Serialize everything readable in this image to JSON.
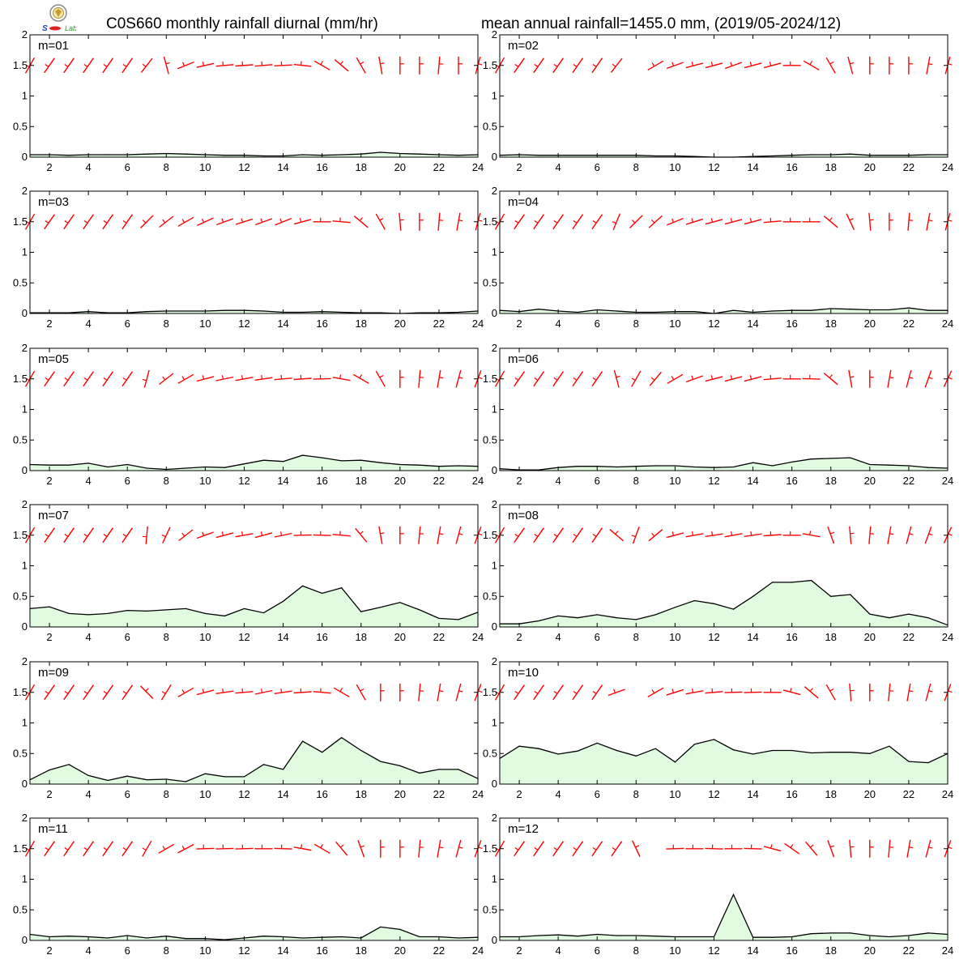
{
  "header": {
    "title_left": "C0S660 monthly rainfall diurnal (mm/hr)",
    "title_right": "mean annual rainfall=1455.0 mm, (2019/05-2024/12)",
    "logo_icon": "weather-lab-logo-icon"
  },
  "colors": {
    "rain_fill": "#e0fbe0",
    "rain_line": "#000000",
    "wind_barb": "#ff0000"
  },
  "chart_data": [
    {
      "type": "area",
      "label": "m=01",
      "x": [
        1,
        2,
        3,
        4,
        5,
        6,
        7,
        8,
        9,
        10,
        11,
        12,
        13,
        14,
        15,
        16,
        17,
        18,
        19,
        20,
        21,
        22,
        23,
        24
      ],
      "xticks": [
        2,
        4,
        6,
        8,
        10,
        12,
        14,
        16,
        18,
        20,
        22,
        24
      ],
      "ylim": [
        0,
        2
      ],
      "yticks": [
        0,
        0.5,
        1,
        1.5,
        2
      ],
      "values": [
        0.04,
        0.04,
        0.03,
        0.04,
        0.04,
        0.04,
        0.05,
        0.06,
        0.05,
        0.04,
        0.03,
        0.03,
        0.02,
        0.02,
        0.04,
        0.03,
        0.04,
        0.05,
        0.08,
        0.06,
        0.05,
        0.04,
        0.03,
        0.04
      ],
      "wind_dir": [
        210,
        215,
        215,
        215,
        215,
        215,
        218,
        345,
        248,
        257,
        265,
        266,
        265,
        267,
        276,
        300,
        310,
        330,
        350,
        0,
        0,
        5,
        0,
        15
      ]
    },
    {
      "type": "area",
      "label": "m=02",
      "x": [
        1,
        2,
        3,
        4,
        5,
        6,
        7,
        8,
        9,
        10,
        11,
        12,
        13,
        14,
        15,
        16,
        17,
        18,
        19,
        20,
        21,
        22,
        23,
        24
      ],
      "xticks": [
        2,
        4,
        6,
        8,
        10,
        12,
        14,
        16,
        18,
        20,
        22,
        24
      ],
      "ylim": [
        0,
        2
      ],
      "yticks": [
        0,
        0.5,
        1,
        1.5,
        2
      ],
      "values": [
        0.03,
        0.04,
        0.03,
        0.03,
        0.03,
        0.03,
        0.03,
        0.03,
        0.02,
        0.02,
        0.01,
        0.0,
        0.0,
        0.01,
        0.02,
        0.03,
        0.04,
        0.04,
        0.05,
        0.03,
        0.03,
        0.03,
        0.04,
        0.04
      ],
      "wind_dir": [
        210,
        215,
        215,
        215,
        215,
        215,
        218,
        null,
        240,
        250,
        255,
        255,
        250,
        255,
        255,
        270,
        300,
        330,
        345,
        0,
        0,
        0,
        10,
        15
      ]
    },
    {
      "type": "area",
      "label": "m=03",
      "x": [
        1,
        2,
        3,
        4,
        5,
        6,
        7,
        8,
        9,
        10,
        11,
        12,
        13,
        14,
        15,
        16,
        17,
        18,
        19,
        20,
        21,
        22,
        23,
        24
      ],
      "xticks": [
        2,
        4,
        6,
        8,
        10,
        12,
        14,
        16,
        18,
        20,
        22,
        24
      ],
      "ylim": [
        0,
        2
      ],
      "yticks": [
        0,
        0.5,
        1,
        1.5,
        2
      ],
      "values": [
        0.01,
        0.01,
        0.01,
        0.03,
        0.01,
        0.01,
        0.03,
        0.04,
        0.04,
        0.04,
        0.05,
        0.05,
        0.04,
        0.02,
        0.02,
        0.03,
        0.02,
        0.01,
        0.01,
        0.0,
        0.01,
        0.01,
        0.02,
        0.04
      ],
      "wind_dir": [
        210,
        215,
        215,
        215,
        215,
        215,
        225,
        232,
        240,
        245,
        250,
        252,
        250,
        248,
        255,
        270,
        275,
        310,
        330,
        355,
        0,
        5,
        10,
        15
      ]
    },
    {
      "type": "area",
      "label": "m=04",
      "x": [
        1,
        2,
        3,
        4,
        5,
        6,
        7,
        8,
        9,
        10,
        11,
        12,
        13,
        14,
        15,
        16,
        17,
        18,
        19,
        20,
        21,
        22,
        23,
        24
      ],
      "xticks": [
        2,
        4,
        6,
        8,
        10,
        12,
        14,
        16,
        18,
        20,
        22,
        24
      ],
      "ylim": [
        0,
        2
      ],
      "yticks": [
        0,
        0.5,
        1,
        1.5,
        2
      ],
      "values": [
        0.05,
        0.03,
        0.07,
        0.04,
        0.02,
        0.06,
        0.04,
        0.02,
        0.02,
        0.03,
        0.03,
        0.0,
        0.05,
        0.02,
        0.04,
        0.05,
        0.05,
        0.08,
        0.07,
        0.06,
        0.06,
        0.09,
        0.05,
        0.05
      ],
      "wind_dir": [
        210,
        215,
        215,
        215,
        215,
        215,
        202,
        225,
        228,
        248,
        252,
        255,
        255,
        255,
        265,
        270,
        270,
        310,
        335,
        355,
        0,
        5,
        10,
        15
      ]
    },
    {
      "type": "area",
      "label": "m=05",
      "x": [
        1,
        2,
        3,
        4,
        5,
        6,
        7,
        8,
        9,
        10,
        11,
        12,
        13,
        14,
        15,
        16,
        17,
        18,
        19,
        20,
        21,
        22,
        23,
        24
      ],
      "xticks": [
        2,
        4,
        6,
        8,
        10,
        12,
        14,
        16,
        18,
        20,
        22,
        24
      ],
      "ylim": [
        0,
        2
      ],
      "yticks": [
        0,
        0.5,
        1,
        1.5,
        2
      ],
      "values": [
        0.1,
        0.09,
        0.09,
        0.12,
        0.06,
        0.1,
        0.04,
        0.02,
        0.04,
        0.06,
        0.05,
        0.11,
        0.17,
        0.15,
        0.25,
        0.21,
        0.16,
        0.17,
        0.13,
        0.1,
        0.09,
        0.07,
        0.08,
        0.07
      ],
      "wind_dir": [
        210,
        215,
        215,
        215,
        215,
        215,
        195,
        232,
        240,
        255,
        258,
        260,
        262,
        265,
        266,
        268,
        280,
        300,
        330,
        0,
        5,
        10,
        15,
        20
      ]
    },
    {
      "type": "area",
      "label": "m=06",
      "x": [
        1,
        2,
        3,
        4,
        5,
        6,
        7,
        8,
        9,
        10,
        11,
        12,
        13,
        14,
        15,
        16,
        17,
        18,
        19,
        20,
        21,
        22,
        23,
        24
      ],
      "xticks": [
        2,
        4,
        6,
        8,
        10,
        12,
        14,
        16,
        18,
        20,
        22,
        24
      ],
      "ylim": [
        0,
        2
      ],
      "yticks": [
        0,
        0.5,
        1,
        1.5,
        2
      ],
      "values": [
        0.03,
        0.01,
        0.01,
        0.05,
        0.07,
        0.07,
        0.06,
        0.07,
        0.08,
        0.08,
        0.06,
        0.05,
        0.06,
        0.13,
        0.08,
        0.14,
        0.19,
        0.2,
        0.21,
        0.1,
        0.09,
        0.08,
        0.05,
        0.04
      ],
      "wind_dir": [
        210,
        215,
        215,
        215,
        215,
        215,
        345,
        210,
        220,
        240,
        250,
        255,
        255,
        255,
        265,
        270,
        272,
        310,
        350,
        0,
        10,
        15,
        20,
        25
      ]
    },
    {
      "type": "area",
      "label": "m=07",
      "x": [
        1,
        2,
        3,
        4,
        5,
        6,
        7,
        8,
        9,
        10,
        11,
        12,
        13,
        14,
        15,
        16,
        17,
        18,
        19,
        20,
        21,
        22,
        23,
        24
      ],
      "xticks": [
        2,
        4,
        6,
        8,
        10,
        12,
        14,
        16,
        18,
        20,
        22,
        24
      ],
      "ylim": [
        0,
        2
      ],
      "yticks": [
        0,
        0.5,
        1,
        1.5,
        2
      ],
      "values": [
        0.3,
        0.33,
        0.22,
        0.2,
        0.22,
        0.27,
        0.26,
        0.28,
        0.3,
        0.22,
        0.18,
        0.3,
        0.23,
        0.42,
        0.67,
        0.55,
        0.64,
        0.25,
        0.32,
        0.4,
        0.28,
        0.14,
        0.12,
        0.24
      ],
      "wind_dir": [
        210,
        215,
        215,
        215,
        215,
        215,
        185,
        205,
        232,
        250,
        255,
        260,
        255,
        258,
        268,
        272,
        275,
        320,
        350,
        0,
        5,
        10,
        15,
        20
      ]
    },
    {
      "type": "area",
      "label": "m=08",
      "x": [
        1,
        2,
        3,
        4,
        5,
        6,
        7,
        8,
        9,
        10,
        11,
        12,
        13,
        14,
        15,
        16,
        17,
        18,
        19,
        20,
        21,
        22,
        23,
        24
      ],
      "xticks": [
        2,
        4,
        6,
        8,
        10,
        12,
        14,
        16,
        18,
        20,
        22,
        24
      ],
      "ylim": [
        0,
        2
      ],
      "yticks": [
        0,
        0.5,
        1,
        1.5,
        2
      ],
      "values": [
        0.05,
        0.05,
        0.1,
        0.18,
        0.15,
        0.2,
        0.15,
        0.12,
        0.2,
        0.32,
        0.43,
        0.38,
        0.29,
        0.5,
        0.73,
        0.73,
        0.76,
        0.5,
        0.53,
        0.21,
        0.15,
        0.21,
        0.15,
        0.03
      ],
      "wind_dir": [
        210,
        215,
        215,
        215,
        215,
        215,
        310,
        200,
        230,
        255,
        260,
        262,
        260,
        262,
        266,
        270,
        280,
        340,
        355,
        5,
        10,
        15,
        20,
        25
      ]
    },
    {
      "type": "area",
      "label": "m=09",
      "x": [
        1,
        2,
        3,
        4,
        5,
        6,
        7,
        8,
        9,
        10,
        11,
        12,
        13,
        14,
        15,
        16,
        17,
        18,
        19,
        20,
        21,
        22,
        23,
        24
      ],
      "xticks": [
        2,
        4,
        6,
        8,
        10,
        12,
        14,
        16,
        18,
        20,
        22,
        24
      ],
      "ylim": [
        0,
        2
      ],
      "yticks": [
        0,
        0.5,
        1,
        1.5,
        2
      ],
      "values": [
        0.07,
        0.23,
        0.32,
        0.14,
        0.06,
        0.13,
        0.07,
        0.08,
        0.04,
        0.17,
        0.12,
        0.12,
        0.32,
        0.24,
        0.7,
        0.52,
        0.76,
        0.55,
        0.37,
        0.3,
        0.18,
        0.24,
        0.24,
        0.09
      ],
      "wind_dir": [
        210,
        215,
        215,
        215,
        215,
        215,
        315,
        212,
        240,
        255,
        262,
        265,
        258,
        262,
        266,
        275,
        300,
        330,
        0,
        0,
        5,
        10,
        15,
        20
      ]
    },
    {
      "type": "area",
      "label": "m=10",
      "x": [
        1,
        2,
        3,
        4,
        5,
        6,
        7,
        8,
        9,
        10,
        11,
        12,
        13,
        14,
        15,
        16,
        17,
        18,
        19,
        20,
        21,
        22,
        23,
        24
      ],
      "xticks": [
        2,
        4,
        6,
        8,
        10,
        12,
        14,
        16,
        18,
        20,
        22,
        24
      ],
      "ylim": [
        0,
        2
      ],
      "yticks": [
        0,
        0.5,
        1,
        1.5,
        2
      ],
      "values": [
        0.42,
        0.62,
        0.58,
        0.49,
        0.54,
        0.67,
        0.55,
        0.46,
        0.58,
        0.36,
        0.65,
        0.73,
        0.56,
        0.49,
        0.55,
        0.55,
        0.51,
        0.52,
        0.52,
        0.5,
        0.62,
        0.37,
        0.35,
        0.5
      ],
      "wind_dir": [
        210,
        215,
        215,
        215,
        215,
        215,
        250,
        null,
        240,
        252,
        260,
        265,
        268,
        268,
        270,
        285,
        310,
        330,
        355,
        0,
        5,
        10,
        15,
        20
      ]
    },
    {
      "type": "area",
      "label": "m=11",
      "x": [
        1,
        2,
        3,
        4,
        5,
        6,
        7,
        8,
        9,
        10,
        11,
        12,
        13,
        14,
        15,
        16,
        17,
        18,
        19,
        20,
        21,
        22,
        23,
        24
      ],
      "xticks": [
        2,
        4,
        6,
        8,
        10,
        12,
        14,
        16,
        18,
        20,
        22,
        24
      ],
      "ylim": [
        0,
        2
      ],
      "yticks": [
        0,
        0.5,
        1,
        1.5,
        2
      ],
      "values": [
        0.1,
        0.06,
        0.07,
        0.06,
        0.04,
        0.08,
        0.04,
        0.07,
        0.03,
        0.03,
        0.01,
        0.04,
        0.07,
        0.06,
        0.04,
        0.05,
        0.06,
        0.04,
        0.22,
        0.18,
        0.06,
        0.06,
        0.04,
        0.05
      ],
      "wind_dir": [
        210,
        215,
        215,
        215,
        215,
        215,
        210,
        240,
        242,
        268,
        268,
        268,
        270,
        272,
        280,
        300,
        320,
        340,
        0,
        0,
        5,
        10,
        15,
        20
      ]
    },
    {
      "type": "area",
      "label": "m=12",
      "x": [
        1,
        2,
        3,
        4,
        5,
        6,
        7,
        8,
        9,
        10,
        11,
        12,
        13,
        14,
        15,
        16,
        17,
        18,
        19,
        20,
        21,
        22,
        23,
        24
      ],
      "xticks": [
        2,
        4,
        6,
        8,
        10,
        12,
        14,
        16,
        18,
        20,
        22,
        24
      ],
      "ylim": [
        0,
        2
      ],
      "yticks": [
        0,
        0.5,
        1,
        1.5,
        2
      ],
      "values": [
        0.06,
        0.06,
        0.08,
        0.09,
        0.07,
        0.1,
        0.08,
        0.08,
        0.07,
        0.06,
        0.06,
        0.06,
        0.75,
        0.05,
        0.05,
        0.06,
        0.11,
        0.12,
        0.12,
        0.08,
        0.06,
        0.08,
        0.12,
        0.1
      ],
      "wind_dir": [
        210,
        215,
        215,
        215,
        215,
        215,
        215,
        335,
        null,
        268,
        270,
        272,
        270,
        272,
        285,
        305,
        320,
        340,
        355,
        0,
        5,
        10,
        15,
        20
      ]
    }
  ]
}
